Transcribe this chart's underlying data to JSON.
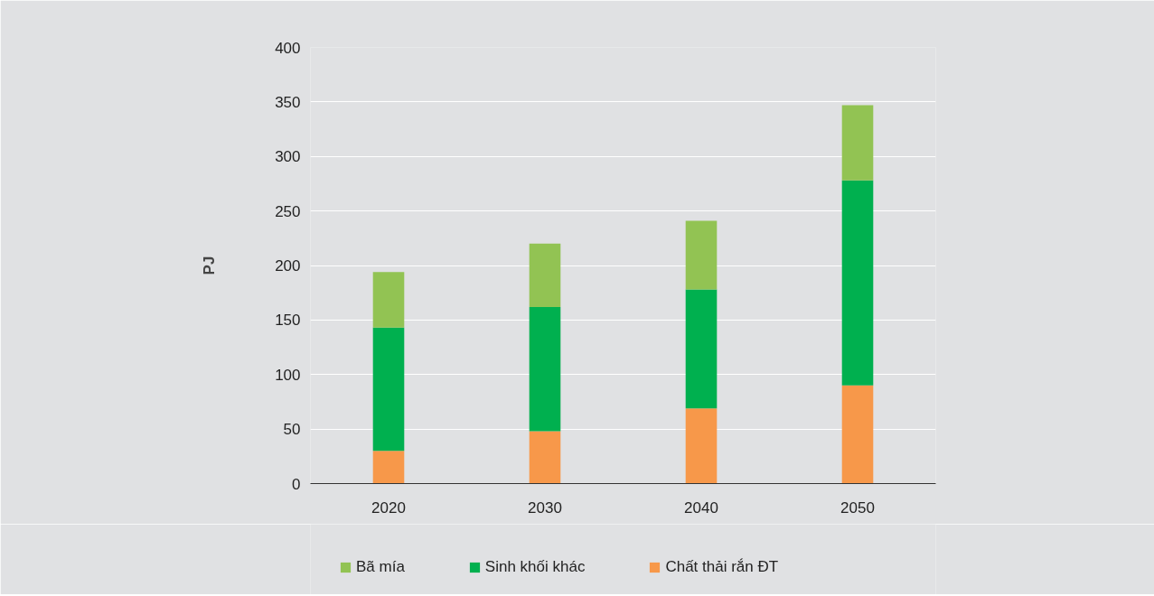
{
  "chart_data": {
    "type": "bar",
    "ylabel": "PJ",
    "categories": [
      "2020",
      "2030",
      "2040",
      "2050"
    ],
    "stacked": true,
    "ylim": [
      0,
      400
    ],
    "yticks": [
      0,
      50,
      100,
      150,
      200,
      250,
      300,
      350,
      400
    ],
    "grid": "y",
    "legend": "bottom",
    "series": [
      {
        "name": "Chất thải rắn ĐT",
        "color": "#f7984a",
        "values": [
          30,
          48,
          69,
          90
        ]
      },
      {
        "name": "Sinh khối khác",
        "color": "#00b04f",
        "values": [
          113,
          114,
          109,
          188
        ]
      },
      {
        "name": "Bã mía",
        "color": "#92c353",
        "values": [
          51,
          58,
          63,
          69
        ]
      }
    ]
  }
}
